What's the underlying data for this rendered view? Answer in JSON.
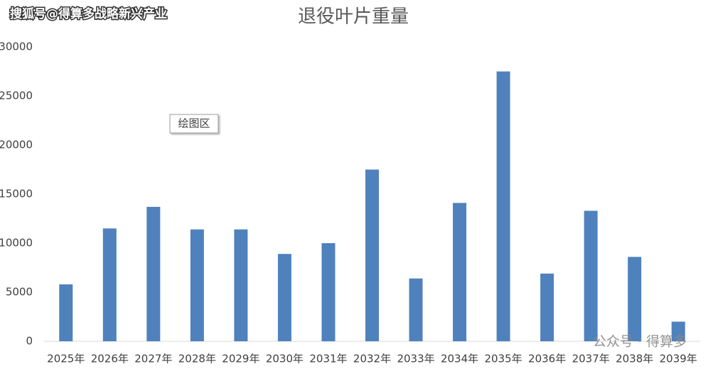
{
  "chart_data": {
    "type": "bar",
    "title": "退役叶片重量",
    "categories": [
      "2025年",
      "2026年",
      "2027年",
      "2028年",
      "2029年",
      "2030年",
      "2031年",
      "2032年",
      "2033年",
      "2034年",
      "2035年",
      "2036年",
      "2037年",
      "2038年",
      "2039年"
    ],
    "values": [
      5800,
      11500,
      13700,
      11400,
      11400,
      8900,
      10000,
      17500,
      6400,
      14100,
      27500,
      6900,
      13300,
      8600,
      2000
    ],
    "color": "#4f81bd",
    "ylim": [
      0,
      30000
    ],
    "yticks": [
      0,
      5000,
      10000,
      15000,
      20000,
      25000,
      30000
    ],
    "grid": false,
    "annotations": [
      "搜狐号@得算多战略新兴产业",
      "绘图区",
      "公众号 · 得算多"
    ]
  }
}
